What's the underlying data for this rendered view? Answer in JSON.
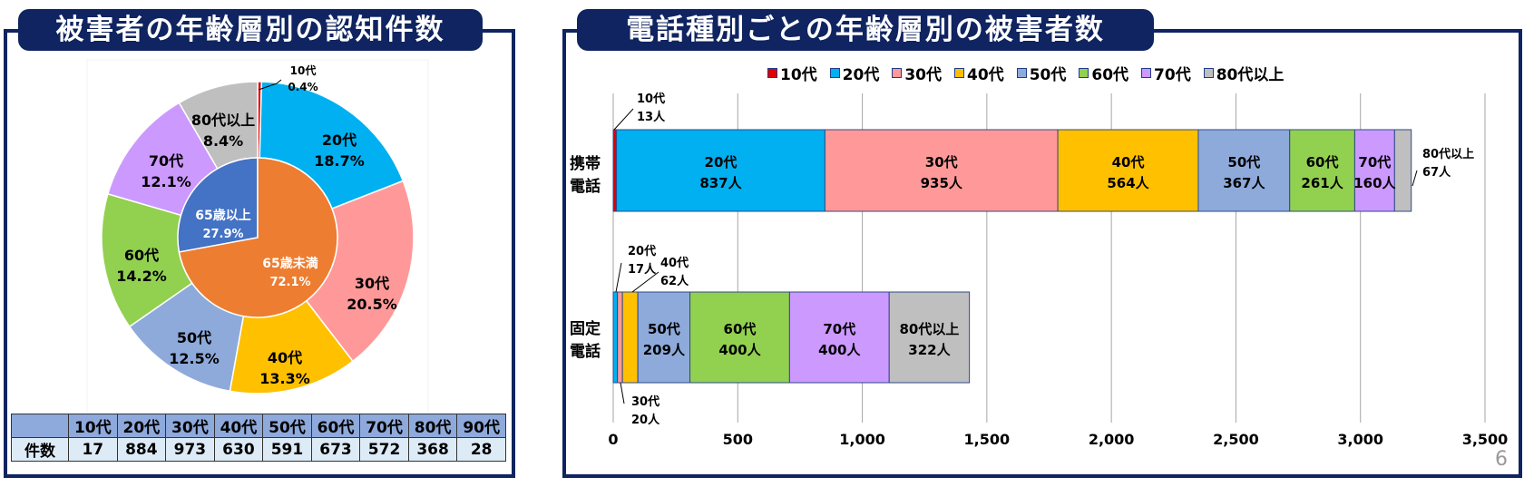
{
  "left_panel": {
    "title": "被害者の年齢層別の認知件数",
    "inner_ring": [
      {
        "label": "65歳以上",
        "pct": "27.9%",
        "value": 27.9,
        "color": "#4472c4"
      },
      {
        "label": "65歳未満",
        "pct": "72.1%",
        "value": 72.1,
        "color": "#ed7d31"
      }
    ],
    "outer_ring": [
      {
        "label": "10代",
        "pct": "0.4%",
        "value": 0.4,
        "color": "#e00000"
      },
      {
        "label": "20代",
        "pct": "18.7%",
        "value": 18.7,
        "color": "#00b0f0"
      },
      {
        "label": "30代",
        "pct": "20.5%",
        "value": 20.5,
        "color": "#ff9999"
      },
      {
        "label": "40代",
        "pct": "13.3%",
        "value": 13.3,
        "color": "#ffc000"
      },
      {
        "label": "50代",
        "pct": "12.5%",
        "value": 12.5,
        "color": "#8eaadb"
      },
      {
        "label": "60代",
        "pct": "14.2%",
        "value": 14.2,
        "color": "#92d050"
      },
      {
        "label": "70代",
        "pct": "12.1%",
        "value": 12.1,
        "color": "#cc99ff"
      },
      {
        "label": "80代以上",
        "pct": "8.4%",
        "value": 8.4,
        "color": "#bfbfbf"
      }
    ],
    "table": {
      "header_blank": "",
      "headers": [
        "10代",
        "20代",
        "30代",
        "40代",
        "50代",
        "60代",
        "70代",
        "80代",
        "90代"
      ],
      "row_label": "件数",
      "values": [
        "17",
        "884",
        "973",
        "630",
        "591",
        "673",
        "572",
        "368",
        "28"
      ]
    }
  },
  "right_panel": {
    "title": "電話種別ごとの年齢層別の被害者数",
    "legend": [
      {
        "label": "10代",
        "color": "#e00000"
      },
      {
        "label": "20代",
        "color": "#00b0f0"
      },
      {
        "label": "30代",
        "color": "#ff9999"
      },
      {
        "label": "40代",
        "color": "#ffc000"
      },
      {
        "label": "50代",
        "color": "#8eaadb"
      },
      {
        "label": "60代",
        "color": "#92d050"
      },
      {
        "label": "70代",
        "color": "#cc99ff"
      },
      {
        "label": "80代以上",
        "color": "#bfbfbf"
      }
    ],
    "categories": [
      {
        "label_line1": "携帯",
        "label_line2": "電話"
      },
      {
        "label_line1": "固定",
        "label_line2": "電話"
      }
    ],
    "x_ticks": [
      "0",
      "500",
      "1,000",
      "1,500",
      "2,000",
      "2,500",
      "3,000",
      "3,500"
    ],
    "page_number": "6"
  },
  "chart_data": [
    {
      "type": "pie",
      "title": "被害者の年齢層別の認知件数",
      "subtype": "double donut",
      "inner": {
        "categories": [
          "65歳以上",
          "65歳未満"
        ],
        "values": [
          27.9,
          72.1
        ],
        "unit": "%"
      },
      "outer": {
        "categories": [
          "10代",
          "20代",
          "30代",
          "40代",
          "50代",
          "60代",
          "70代",
          "80代以上"
        ],
        "values": [
          0.4,
          18.7,
          20.5,
          13.3,
          12.5,
          14.2,
          12.1,
          8.4
        ],
        "unit": "%"
      },
      "table": {
        "categories": [
          "10代",
          "20代",
          "30代",
          "40代",
          "50代",
          "60代",
          "70代",
          "80代",
          "90代"
        ],
        "values": [
          17,
          884,
          973,
          630,
          591,
          673,
          572,
          368,
          28
        ],
        "row_label": "件数"
      }
    },
    {
      "type": "bar",
      "orientation": "horizontal",
      "stacked": true,
      "title": "電話種別ごとの年齢層別の被害者数",
      "categories": [
        "携帯電話",
        "固定電話"
      ],
      "series": [
        {
          "name": "10代",
          "values": [
            13,
            0
          ]
        },
        {
          "name": "20代",
          "values": [
            837,
            17
          ]
        },
        {
          "name": "30代",
          "values": [
            935,
            20
          ]
        },
        {
          "name": "40代",
          "values": [
            564,
            62
          ]
        },
        {
          "name": "50代",
          "values": [
            367,
            209
          ]
        },
        {
          "name": "60代",
          "values": [
            261,
            400
          ]
        },
        {
          "name": "70代",
          "values": [
            160,
            400
          ]
        },
        {
          "name": "80代以上",
          "values": [
            67,
            322
          ]
        }
      ],
      "unit": "人",
      "xlim": [
        0,
        3500
      ],
      "x_ticks": [
        0,
        500,
        1000,
        1500,
        2000,
        2500,
        3000,
        3500
      ],
      "grid": "vertical",
      "legend_position": "top"
    }
  ]
}
